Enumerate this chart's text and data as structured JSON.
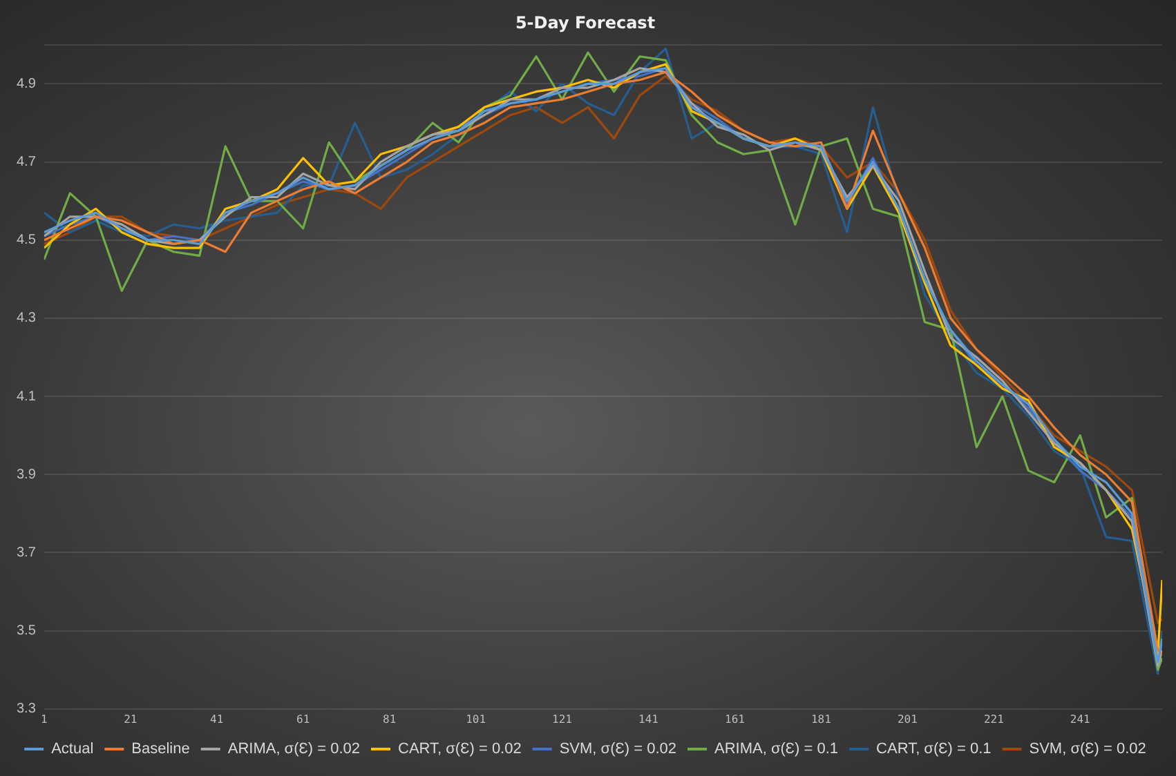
{
  "chart_data": {
    "type": "line",
    "title": "5-Day Forecast",
    "x": [
      1,
      7,
      13,
      19,
      25,
      31,
      37,
      43,
      49,
      55,
      61,
      67,
      73,
      79,
      85,
      91,
      97,
      103,
      109,
      115,
      121,
      127,
      133,
      139,
      145,
      151,
      157,
      163,
      169,
      175,
      181,
      187,
      193,
      199,
      205,
      211,
      217,
      223,
      229,
      235,
      241,
      247,
      253,
      259,
      260
    ],
    "xlim": [
      1,
      260
    ],
    "xticks": [
      1,
      21,
      41,
      61,
      81,
      101,
      121,
      141,
      161,
      181,
      201,
      221,
      241
    ],
    "ylim": [
      3.3,
      5.0
    ],
    "yticks": [
      3.3,
      3.5,
      3.7,
      3.9,
      4.1,
      4.3,
      4.5,
      4.7,
      4.9,
      {
        "value": 5.0,
        "label": null
      }
    ],
    "grid": "y",
    "legend": "bottom",
    "marker": "none",
    "line_style": "solid",
    "series": [
      {
        "name": "Actual",
        "color": "#5b9bd5",
        "values": [
          4.52,
          4.55,
          4.57,
          4.53,
          4.5,
          4.5,
          4.49,
          4.57,
          4.6,
          4.62,
          4.66,
          4.63,
          4.64,
          4.69,
          4.73,
          4.76,
          4.78,
          4.83,
          4.85,
          4.86,
          4.88,
          4.9,
          4.9,
          4.93,
          4.94,
          4.84,
          4.8,
          4.76,
          4.74,
          4.75,
          4.74,
          4.6,
          4.7,
          4.58,
          4.4,
          4.27,
          4.19,
          4.13,
          4.08,
          3.99,
          3.92,
          3.88,
          3.8,
          3.42,
          3.48
        ]
      },
      {
        "name": "Baseline",
        "color": "#ed7d31",
        "values": [
          4.5,
          4.53,
          4.56,
          4.55,
          4.52,
          4.49,
          4.5,
          4.47,
          4.57,
          4.6,
          4.63,
          4.65,
          4.62,
          4.66,
          4.7,
          4.75,
          4.77,
          4.8,
          4.84,
          4.85,
          4.86,
          4.88,
          4.9,
          4.91,
          4.93,
          4.88,
          4.82,
          4.78,
          4.75,
          4.74,
          4.75,
          4.58,
          4.78,
          4.62,
          4.48,
          4.3,
          4.22,
          4.16,
          4.1,
          4.02,
          3.95,
          3.9,
          3.83,
          3.45,
          3.44
        ]
      },
      {
        "name": "ARIMA, σ(Ɛ) = 0.02",
        "color": "#a5a5a5",
        "values": [
          4.51,
          4.56,
          4.56,
          4.54,
          4.5,
          4.49,
          4.5,
          4.56,
          4.61,
          4.61,
          4.67,
          4.64,
          4.63,
          4.7,
          4.74,
          4.77,
          4.78,
          4.82,
          4.86,
          4.86,
          4.89,
          4.89,
          4.91,
          4.94,
          4.93,
          4.85,
          4.79,
          4.77,
          4.73,
          4.75,
          4.73,
          4.61,
          4.69,
          4.6,
          4.42,
          4.25,
          4.2,
          4.14,
          4.06,
          3.98,
          3.93,
          3.86,
          3.78,
          3.41,
          3.45
        ]
      },
      {
        "name": "CART, σ(Ɛ) = 0.02",
        "color": "#ffc000",
        "values": [
          4.48,
          4.54,
          4.58,
          4.52,
          4.49,
          4.48,
          4.48,
          4.58,
          4.6,
          4.63,
          4.71,
          4.64,
          4.65,
          4.72,
          4.74,
          4.77,
          4.79,
          4.84,
          4.86,
          4.88,
          4.89,
          4.91,
          4.89,
          4.93,
          4.95,
          4.83,
          4.8,
          4.76,
          4.74,
          4.76,
          4.73,
          4.58,
          4.69,
          4.57,
          4.39,
          4.23,
          4.18,
          4.12,
          4.09,
          3.97,
          3.93,
          3.86,
          3.76,
          3.44,
          3.63
        ]
      },
      {
        "name": "SVM, σ(Ɛ) = 0.02",
        "color": "#4472c4",
        "values": [
          4.51,
          4.54,
          4.56,
          4.53,
          4.5,
          4.51,
          4.5,
          4.57,
          4.59,
          4.62,
          4.65,
          4.63,
          4.64,
          4.68,
          4.72,
          4.76,
          4.79,
          4.82,
          4.85,
          4.86,
          4.88,
          4.9,
          4.91,
          4.92,
          4.94,
          4.85,
          4.81,
          4.76,
          4.74,
          4.74,
          4.74,
          4.59,
          4.71,
          4.57,
          4.4,
          4.27,
          4.18,
          4.13,
          4.07,
          3.98,
          3.91,
          3.86,
          3.79,
          3.41,
          3.47
        ]
      },
      {
        "name": "ARIMA, σ(Ɛ) = 0.1",
        "color": "#70ad47",
        "values": [
          4.45,
          4.62,
          4.56,
          4.37,
          4.5,
          4.47,
          4.46,
          4.74,
          4.6,
          4.6,
          4.53,
          4.75,
          4.65,
          4.69,
          4.73,
          4.8,
          4.75,
          4.84,
          4.87,
          4.97,
          4.86,
          4.98,
          4.88,
          4.97,
          4.96,
          4.82,
          4.75,
          4.72,
          4.73,
          4.54,
          4.74,
          4.76,
          4.58,
          4.56,
          4.29,
          4.27,
          3.97,
          4.1,
          3.91,
          3.88,
          4.0,
          3.79,
          3.84,
          3.4,
          3.43
        ]
      },
      {
        "name": "CART, σ(Ɛ) = 0.1",
        "color": "#255e91",
        "values": [
          4.57,
          4.52,
          4.55,
          4.52,
          4.51,
          4.54,
          4.53,
          4.55,
          4.56,
          4.57,
          4.64,
          4.64,
          4.8,
          4.66,
          4.68,
          4.72,
          4.77,
          4.83,
          4.88,
          4.83,
          4.9,
          4.85,
          4.82,
          4.93,
          4.99,
          4.76,
          4.8,
          4.76,
          4.74,
          4.74,
          4.72,
          4.52,
          4.84,
          4.6,
          4.36,
          4.25,
          4.16,
          4.12,
          4.05,
          3.96,
          3.92,
          3.74,
          3.73,
          3.39,
          3.5
        ]
      },
      {
        "name": "SVM, σ(Ɛ) = 0.02",
        "color": "#9e480e",
        "values": [
          4.49,
          4.52,
          4.56,
          4.56,
          4.52,
          4.51,
          4.5,
          4.53,
          4.56,
          4.59,
          4.61,
          4.63,
          4.62,
          4.58,
          4.66,
          4.7,
          4.74,
          4.78,
          4.82,
          4.84,
          4.8,
          4.84,
          4.76,
          4.87,
          4.92,
          4.86,
          4.83,
          4.78,
          4.75,
          4.76,
          4.74,
          4.66,
          4.7,
          4.62,
          4.5,
          4.32,
          4.22,
          4.15,
          4.08,
          4.0,
          3.96,
          3.92,
          3.86,
          3.52,
          3.53
        ]
      }
    ]
  }
}
